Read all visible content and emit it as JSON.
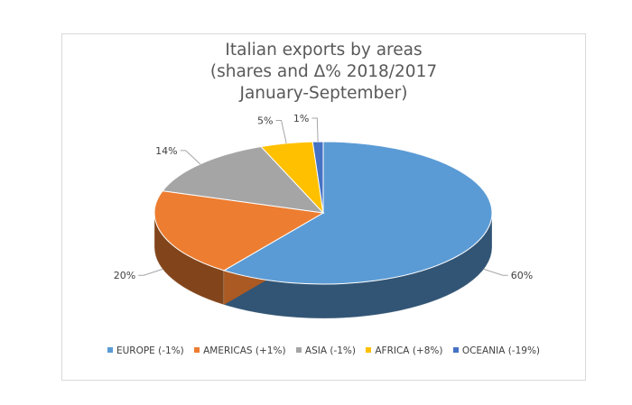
{
  "chart_data": {
    "type": "pie",
    "title_lines": [
      "Italian exports by areas",
      "(shares and Δ% 2018/2017",
      "January-September)"
    ],
    "slices": [
      {
        "name": "EUROPE",
        "legend": "EUROPE (-1%)",
        "value": 60,
        "label": "60%",
        "color": "#5b9bd5"
      },
      {
        "name": "AMERICAS",
        "legend": "AMERICAS (+1%)",
        "value": 20,
        "label": "20%",
        "color": "#ed7d31"
      },
      {
        "name": "ASIA",
        "legend": "ASIA (-1%)",
        "value": 14,
        "label": "14%",
        "color": "#a5a5a5"
      },
      {
        "name": "AFRICA",
        "legend": "AFRICA (+8%)",
        "value": 5,
        "label": "5%",
        "color": "#ffc000"
      },
      {
        "name": "OCEANIA",
        "legend": "OCEANIA (-19%)",
        "value": 1,
        "label": "1%",
        "color": "#4472c4"
      }
    ],
    "style": "3d",
    "legend_position": "bottom"
  }
}
